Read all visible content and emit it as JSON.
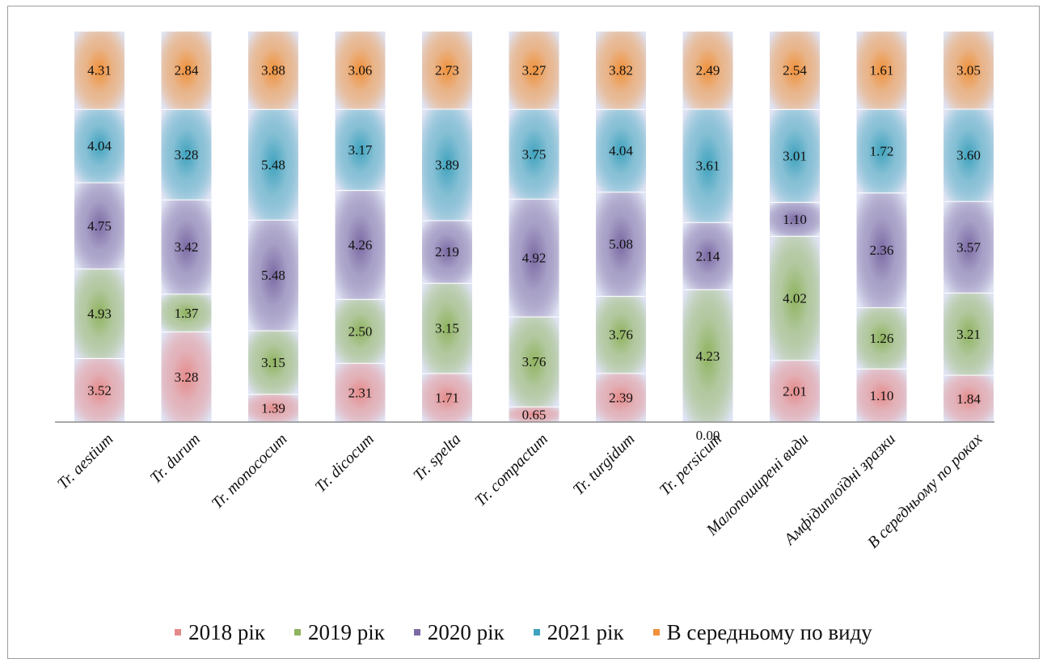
{
  "chart_data": {
    "type": "bar",
    "stacked": true,
    "categories": [
      "Tr. aestium",
      "Tr. durum",
      "Tr. monococum",
      "Tr. dicocum",
      "Tr. spelta",
      "Tr. compactum",
      "Tr. turgidum",
      "Tr. persicum",
      "Малопоширені види",
      "Амфідиплоїдні зразки",
      "В середньому по роках"
    ],
    "series": [
      {
        "name": "2018 рік",
        "color": "#e58a8a",
        "values": [
          3.52,
          3.28,
          1.39,
          2.31,
          1.71,
          0.65,
          2.39,
          0.0,
          2.01,
          1.1,
          1.84
        ],
        "labels": [
          "3.52",
          "3.28",
          "1.39",
          "2.31",
          "1.71",
          "0.65",
          "2.39",
          "0.00",
          "2.01",
          "1.10",
          "1.84"
        ]
      },
      {
        "name": "2019 рік",
        "color": "#8fb35e",
        "values": [
          4.93,
          1.37,
          3.15,
          2.5,
          3.15,
          3.76,
          3.76,
          4.23,
          4.02,
          1.26,
          3.21
        ],
        "labels": [
          "4.93",
          "1.37",
          "3.15",
          "2.50",
          "3.15",
          "3.76",
          "3.76",
          "4.23",
          "4.02",
          "1.26",
          "3.21"
        ]
      },
      {
        "name": "2020 рік",
        "color": "#7b6aa3",
        "values": [
          4.75,
          3.42,
          5.48,
          4.26,
          2.19,
          4.92,
          5.08,
          2.14,
          1.1,
          2.36,
          3.57
        ],
        "labels": [
          "4.75",
          "3.42",
          "5.48",
          "4.26",
          "2.19",
          "4.92",
          "5.08",
          "2.14",
          "1.10",
          "2.36",
          "3.57"
        ]
      },
      {
        "name": "2021 рік",
        "color": "#3fa3bd",
        "values": [
          4.04,
          3.28,
          5.48,
          3.17,
          3.89,
          3.75,
          4.04,
          3.61,
          3.01,
          1.72,
          3.6
        ],
        "labels": [
          "4.04",
          "3.28",
          "5.48",
          "3.17",
          "3.89",
          "3.75",
          "4.04",
          "3.61",
          "3.01",
          "1.72",
          "3.60"
        ]
      },
      {
        "name": "В середньому по виду",
        "color": "#f0913a",
        "values": [
          4.31,
          2.84,
          3.88,
          3.06,
          2.73,
          3.27,
          3.82,
          2.49,
          2.54,
          1.61,
          3.05
        ],
        "labels": [
          "4.31",
          "2.84",
          "3.88",
          "3.06",
          "2.73",
          "3.27",
          "3.82",
          "2.49",
          "2.54",
          "1.61",
          "3.05"
        ]
      }
    ],
    "normalized": true,
    "legend_position": "bottom",
    "grid": false
  }
}
